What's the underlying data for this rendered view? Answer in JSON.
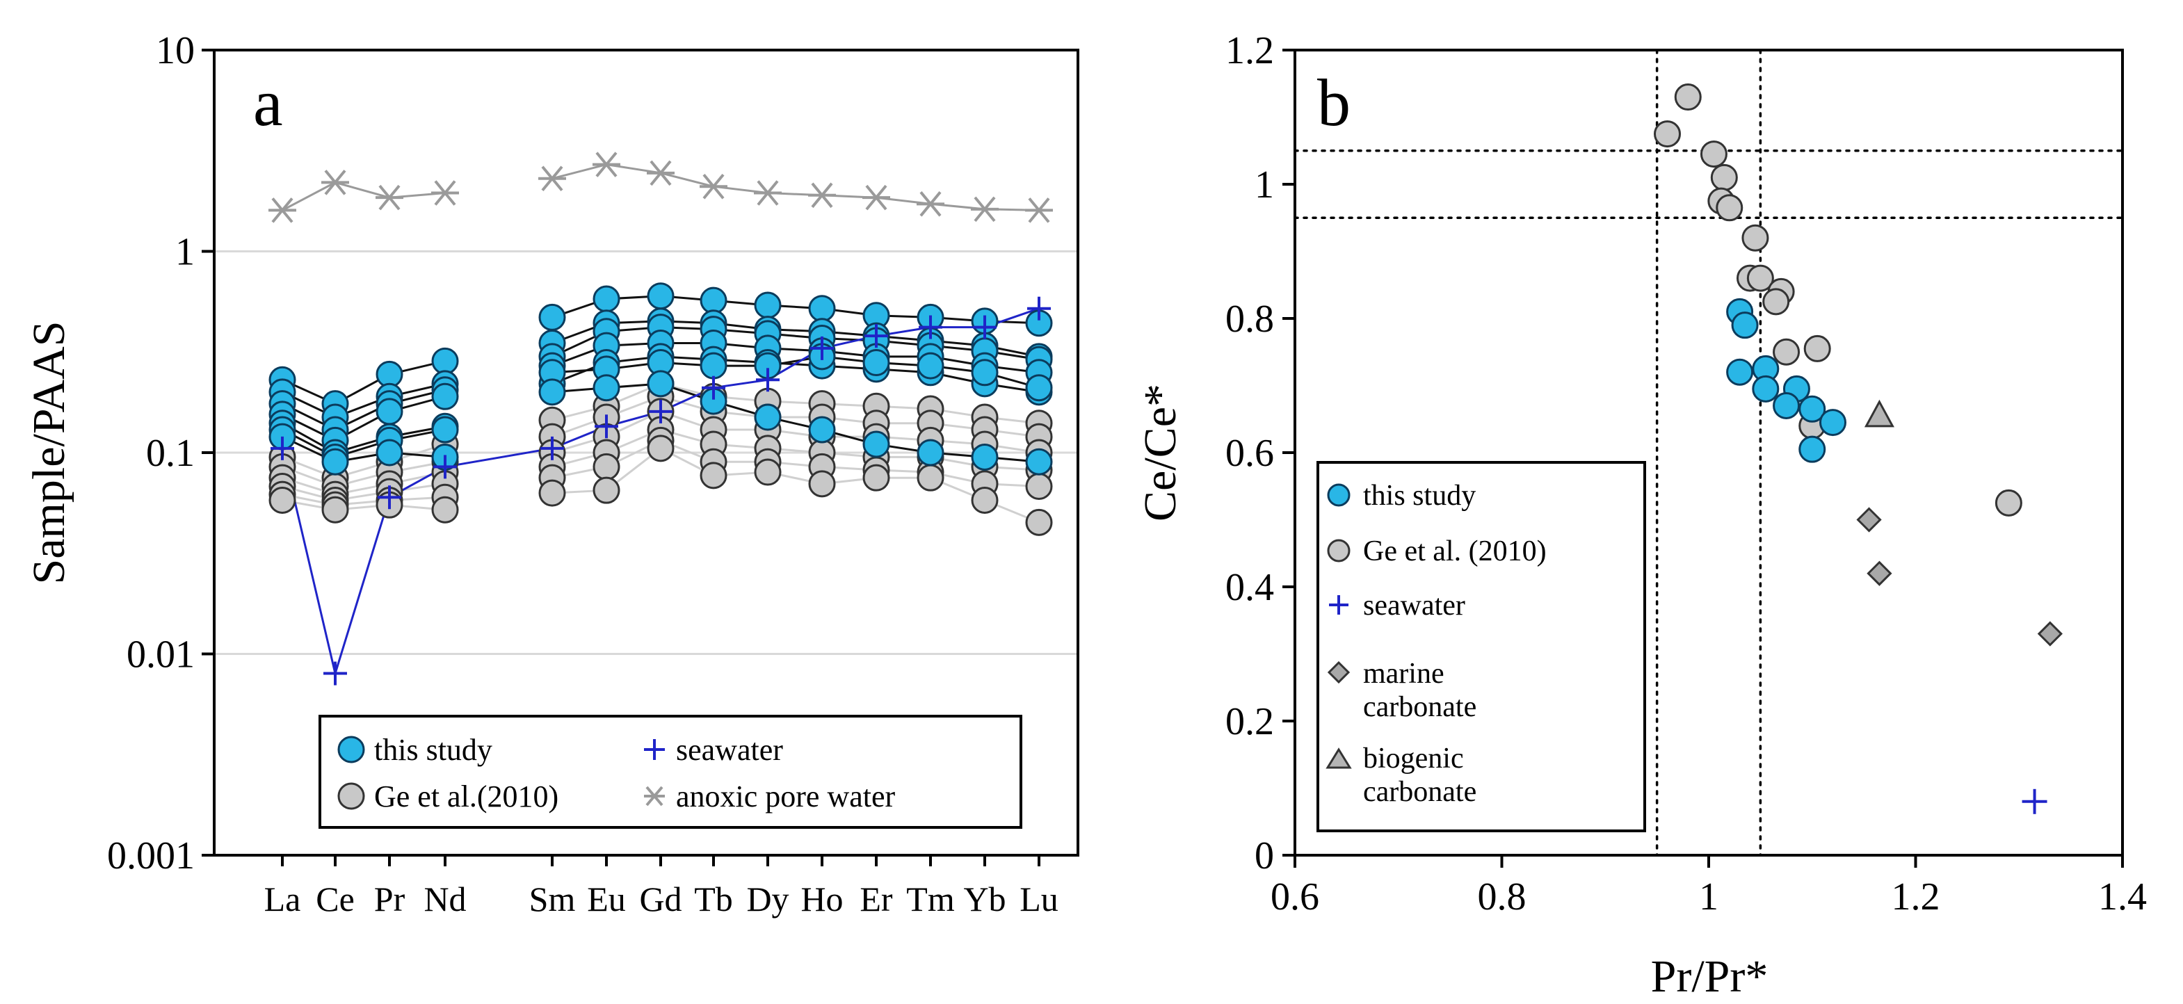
{
  "colors": {
    "blue_fill": "#29B6E6",
    "blue_stroke": "#0B3C5D",
    "grey_fill": "#C8C8C8",
    "grey_stroke": "#333333",
    "seawater": "#1F24C8",
    "anoxic": "#9A9A9A",
    "marine": "#A8A8A8",
    "biogenic": "#B5B5B5",
    "gridline": "#D9D9D9",
    "connect_blue": "#000000",
    "connect_grey": "#D0D0D0"
  },
  "chart_data": [
    {
      "id": "a",
      "type": "line",
      "panel_letter": "a",
      "ylabel": "Sample/PAAS",
      "yscale": "log",
      "ylim": [
        0.001,
        10
      ],
      "yticks": [
        "10",
        "1",
        "0.1",
        "0.01",
        "0.001"
      ],
      "ytick_values": [
        10,
        1,
        0.1,
        0.01,
        0.001
      ],
      "categories": [
        "La",
        "Ce",
        "Pr",
        "Nd",
        "Sm",
        "Eu",
        "Gd",
        "Tb",
        "Dy",
        "Ho",
        "Er",
        "Tm",
        "Yb",
        "Lu"
      ],
      "legend": [
        {
          "key": "blue",
          "label": "this study",
          "marker": "circle-blue"
        },
        {
          "key": "seawater",
          "label": "seawater",
          "marker": "plus"
        },
        {
          "key": "grey",
          "label": "Ge et al.(2010)",
          "marker": "circle-grey"
        },
        {
          "key": "anoxic",
          "label": "anoxic pore water",
          "marker": "asterisk"
        }
      ],
      "series": [
        {
          "name": "anoxic pore water",
          "group": "anoxic",
          "values": [
            1.6,
            2.2,
            1.85,
            1.95,
            2.3,
            2.7,
            2.45,
            2.1,
            1.95,
            1.9,
            1.85,
            1.72,
            1.62,
            1.6
          ]
        },
        {
          "name": "seawater",
          "group": "seawater",
          "values": [
            0.105,
            0.008,
            0.06,
            0.085,
            0.105,
            0.135,
            0.16,
            0.21,
            0.23,
            0.33,
            0.38,
            0.42,
            0.42,
            0.52
          ]
        },
        {
          "name": "this study 1",
          "group": "blue",
          "values": [
            0.23,
            0.175,
            0.245,
            0.285,
            0.47,
            0.58,
            0.6,
            0.57,
            0.54,
            0.52,
            0.48,
            0.47,
            0.45,
            0.44
          ]
        },
        {
          "name": "this study 2",
          "group": "blue",
          "values": [
            0.2,
            0.15,
            0.19,
            0.22,
            0.35,
            0.44,
            0.45,
            0.44,
            0.41,
            0.4,
            0.38,
            0.36,
            0.34,
            0.3
          ]
        },
        {
          "name": "this study 3",
          "group": "blue",
          "values": [
            0.175,
            0.13,
            0.175,
            0.205,
            0.3,
            0.4,
            0.42,
            0.41,
            0.39,
            0.37,
            0.36,
            0.34,
            0.32,
            0.29
          ]
        },
        {
          "name": "this study 4",
          "group": "blue",
          "values": [
            0.155,
            0.115,
            0.16,
            0.19,
            0.27,
            0.34,
            0.35,
            0.35,
            0.33,
            0.32,
            0.3,
            0.3,
            0.27,
            0.25
          ]
        },
        {
          "name": "this study 5",
          "group": "blue",
          "values": [
            0.14,
            0.1,
            0.12,
            0.135,
            0.22,
            0.28,
            0.3,
            0.29,
            0.28,
            0.27,
            0.26,
            0.25,
            0.22,
            0.2
          ]
        },
        {
          "name": "this study 6",
          "group": "blue",
          "values": [
            0.13,
            0.095,
            0.115,
            0.13,
            0.25,
            0.26,
            0.28,
            0.27,
            0.27,
            0.3,
            0.28,
            0.27,
            0.25,
            0.21
          ]
        },
        {
          "name": "this study 7",
          "group": "blue",
          "values": [
            0.12,
            0.09,
            0.1,
            0.095,
            0.2,
            0.21,
            0.22,
            0.18,
            0.15,
            0.13,
            0.11,
            0.1,
            0.095,
            0.09
          ]
        },
        {
          "name": "Ge et al. 1",
          "group": "grey",
          "values": [
            0.095,
            0.075,
            0.09,
            0.11,
            0.145,
            0.17,
            0.22,
            0.19,
            0.18,
            0.175,
            0.17,
            0.165,
            0.15,
            0.14
          ]
        },
        {
          "name": "Ge et al. 2",
          "group": "grey",
          "values": [
            0.085,
            0.068,
            0.08,
            0.09,
            0.12,
            0.15,
            0.19,
            0.16,
            0.15,
            0.15,
            0.14,
            0.14,
            0.13,
            0.12
          ]
        },
        {
          "name": "Ge et al. 3",
          "group": "grey",
          "values": [
            0.075,
            0.062,
            0.07,
            0.08,
            0.1,
            0.12,
            0.16,
            0.13,
            0.13,
            0.12,
            0.12,
            0.115,
            0.11,
            0.1
          ]
        },
        {
          "name": "Ge et al. 4",
          "group": "grey",
          "values": [
            0.068,
            0.058,
            0.064,
            0.07,
            0.085,
            0.1,
            0.13,
            0.11,
            0.105,
            0.1,
            0.095,
            0.095,
            0.085,
            0.082
          ]
        },
        {
          "name": "Ge et al. 5",
          "group": "grey",
          "values": [
            0.062,
            0.055,
            0.058,
            0.06,
            0.075,
            0.085,
            0.115,
            0.09,
            0.09,
            0.085,
            0.082,
            0.08,
            0.07,
            0.068
          ]
        },
        {
          "name": "Ge et al. 6",
          "group": "grey",
          "values": [
            0.058,
            0.052,
            0.055,
            0.052,
            0.063,
            0.065,
            0.105,
            0.077,
            0.08,
            0.07,
            0.075,
            0.075,
            0.058,
            0.045
          ]
        }
      ]
    },
    {
      "id": "b",
      "type": "scatter",
      "panel_letter": "b",
      "xlabel": "Pr/Pr*",
      "ylabel": "Ce/Ce*",
      "xlim": [
        0.6,
        1.4
      ],
      "ylim": [
        0,
        1.2
      ],
      "xticks": [
        "0.6",
        "0.8",
        "1",
        "1.2",
        "1.4"
      ],
      "xtick_values": [
        0.6,
        0.8,
        1.0,
        1.2,
        1.4
      ],
      "yticks": [
        "0",
        "0.2",
        "0.4",
        "0.6",
        "0.8",
        "1",
        "1.2"
      ],
      "ytick_values": [
        0,
        0.2,
        0.4,
        0.6,
        0.8,
        1.0,
        1.2
      ],
      "ref_lines": {
        "x": [
          0.95,
          1.05
        ],
        "y": [
          0.95,
          1.05
        ]
      },
      "legend": [
        {
          "key": "blue",
          "label_lines": [
            "this study"
          ],
          "marker": "circle-blue"
        },
        {
          "key": "grey",
          "label_lines": [
            "Ge et al. (2010)"
          ],
          "marker": "circle-grey"
        },
        {
          "key": "seawater",
          "label_lines": [
            "seawater"
          ],
          "marker": "plus"
        },
        {
          "key": "marine",
          "label_lines": [
            "marine",
            "carbonate"
          ],
          "marker": "diamond"
        },
        {
          "key": "biogenic",
          "label_lines": [
            "biogenic",
            "carbonate"
          ],
          "marker": "triangle"
        }
      ],
      "series": [
        {
          "name": "Ge et al. (2010)",
          "group": "grey",
          "points": [
            [
              0.98,
              1.13
            ],
            [
              0.96,
              1.075
            ],
            [
              1.005,
              1.045
            ],
            [
              1.015,
              1.01
            ],
            [
              1.012,
              0.975
            ],
            [
              1.02,
              0.965
            ],
            [
              1.045,
              0.92
            ],
            [
              1.04,
              0.86
            ],
            [
              1.05,
              0.86
            ],
            [
              1.07,
              0.84
            ],
            [
              1.065,
              0.825
            ],
            [
              1.075,
              0.75
            ],
            [
              1.105,
              0.755
            ],
            [
              1.1,
              0.64
            ],
            [
              1.29,
              0.525
            ]
          ]
        },
        {
          "name": "this study",
          "group": "blue",
          "points": [
            [
              1.03,
              0.81
            ],
            [
              1.035,
              0.79
            ],
            [
              1.03,
              0.72
            ],
            [
              1.055,
              0.725
            ],
            [
              1.055,
              0.695
            ],
            [
              1.085,
              0.695
            ],
            [
              1.075,
              0.67
            ],
            [
              1.1,
              0.665
            ],
            [
              1.12,
              0.645
            ],
            [
              1.1,
              0.605
            ]
          ]
        },
        {
          "name": "marine carbonate",
          "group": "marine",
          "points": [
            [
              1.155,
              0.5
            ],
            [
              1.165,
              0.42
            ],
            [
              1.33,
              0.33
            ]
          ]
        },
        {
          "name": "biogenic carbonate",
          "group": "biogenic",
          "points": [
            [
              1.165,
              0.655
            ]
          ]
        },
        {
          "name": "seawater",
          "group": "seawater",
          "points": [
            [
              1.315,
              0.08
            ]
          ]
        }
      ]
    }
  ]
}
